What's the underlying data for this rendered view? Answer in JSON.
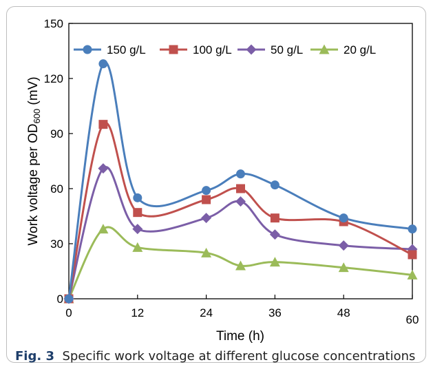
{
  "chart_data": {
    "type": "line",
    "smooth": true,
    "x": [
      0,
      6,
      12,
      24,
      30,
      36,
      48,
      60
    ],
    "xticks": [
      0,
      12,
      24,
      36,
      48,
      60
    ],
    "yticks": [
      0,
      30,
      60,
      90,
      120,
      150
    ],
    "xlim": [
      0,
      60
    ],
    "ylim": [
      0,
      150
    ],
    "xlabel": "Time (h)",
    "ylabel_main": "Work voltage per OD",
    "ylabel_sub": "600",
    "ylabel_unit": " (mV)",
    "grid": false,
    "legend_position": "top",
    "series": [
      {
        "name": "150 g/L",
        "color": "#4a7ebb",
        "marker": "circle",
        "values": [
          0,
          128,
          55,
          59,
          68,
          62,
          44,
          38
        ]
      },
      {
        "name": "100 g/L",
        "color": "#c0504d",
        "marker": "square",
        "values": [
          0,
          95,
          47,
          54,
          60,
          44,
          42,
          24
        ]
      },
      {
        "name": "50 g/L",
        "color": "#7b5ea7",
        "marker": "diamond",
        "values": [
          0,
          71,
          38,
          44,
          53,
          35,
          29,
          27
        ]
      },
      {
        "name": "20 g/L",
        "color": "#9bbb59",
        "marker": "triangle",
        "values": [
          0,
          38,
          28,
          25,
          18,
          20,
          17,
          13
        ]
      }
    ]
  },
  "caption": {
    "label": "Fig. 3",
    "text": "Specific work voltage at different glucose concentrations"
  }
}
